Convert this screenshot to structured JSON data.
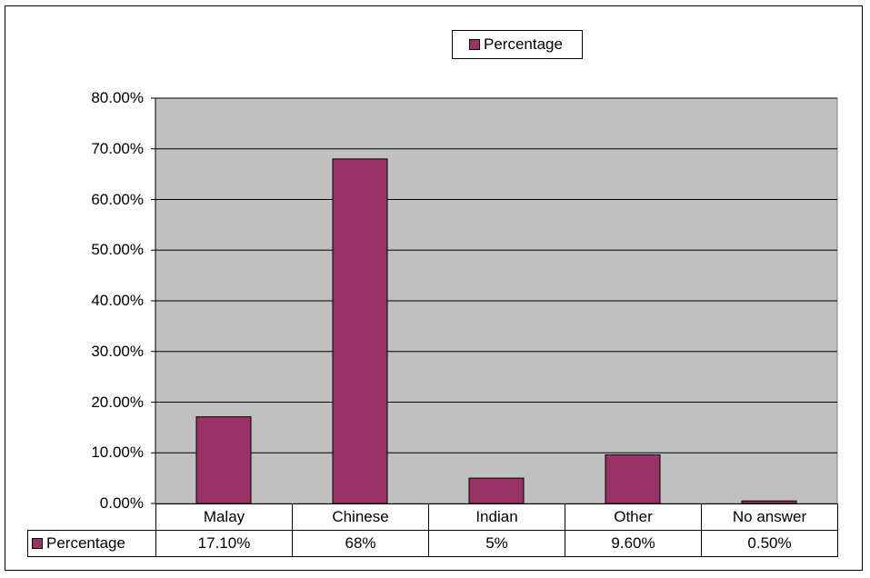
{
  "chart_data": {
    "type": "bar",
    "categories": [
      "Malay",
      "Chinese",
      "Indian",
      "Other",
      "No answer"
    ],
    "series": [
      {
        "name": "Percentage",
        "values": [
          17.1,
          68,
          5,
          9.6,
          0.5
        ],
        "labels": [
          "17.10%",
          "68%",
          "5%",
          "9.60%",
          "0.50%"
        ]
      }
    ],
    "y_ticks": [
      "0.00%",
      "10.00%",
      "20.00%",
      "30.00%",
      "40.00%",
      "50.00%",
      "60.00%",
      "70.00%",
      "80.00%"
    ],
    "ylim": [
      0,
      80
    ],
    "grid": true,
    "legend_position": "top",
    "colors": {
      "bar": "#993366",
      "plot_background": "#c0c0c0"
    }
  }
}
